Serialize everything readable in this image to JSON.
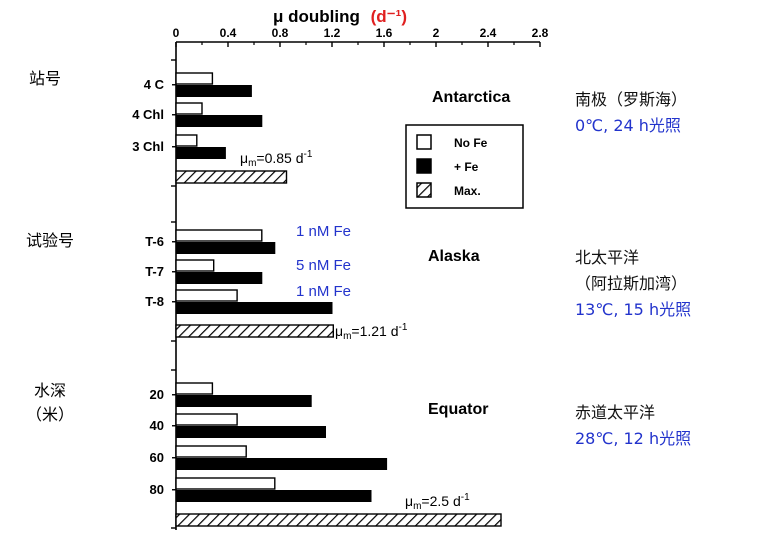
{
  "chart_data": {
    "type": "bar",
    "orientation": "horizontal",
    "title": "μ doubling",
    "title_unit": "(d⁻¹)",
    "title_unit_color": "#e02020",
    "x_ticks": [
      "0",
      "0.4",
      "0.8",
      "1.2",
      "1.6",
      "2",
      "2.4",
      "2.8"
    ],
    "xlim": [
      0,
      2.8
    ],
    "legend": {
      "placement": "inside-right",
      "entries": [
        {
          "key": "noFe",
          "label": "No Fe"
        },
        {
          "key": "plusFe",
          "label": "+ Fe"
        },
        {
          "key": "max",
          "label": "Max."
        }
      ]
    },
    "groups": [
      {
        "axis_label": [
          "站号"
        ],
        "region": "Antarctica",
        "mu_text": "=0.85 d",
        "mu_max": 0.85,
        "notes": [
          {
            "text": "南极（罗斯海）",
            "color": "#111111"
          },
          {
            "text": "0℃, 24 h光照",
            "color": "#2233cc"
          }
        ],
        "rows": [
          {
            "label": "4 C",
            "noFe": 0.28,
            "plusFe": 0.58
          },
          {
            "label": "4 Chl",
            "noFe": 0.2,
            "plusFe": 0.66
          },
          {
            "label": "3 Chl",
            "noFe": 0.16,
            "plusFe": 0.38
          }
        ]
      },
      {
        "axis_label": [
          "试验号"
        ],
        "region": "Alaska",
        "mu_text": "=1.21 d",
        "mu_max": 1.21,
        "notes": [
          {
            "text": "北太平洋",
            "color": "#111111"
          },
          {
            "text": "（阿拉斯加湾）",
            "color": "#111111"
          },
          {
            "text": "13℃, 15 h光照",
            "color": "#2233cc"
          }
        ],
        "rows": [
          {
            "label": "T-6",
            "noFe": 0.66,
            "plusFe": 0.76,
            "annotation": "1 nM Fe"
          },
          {
            "label": "T-7",
            "noFe": 0.29,
            "plusFe": 0.66,
            "annotation": "5 nM Fe"
          },
          {
            "label": "T-8",
            "noFe": 0.47,
            "plusFe": 1.2,
            "annotation": "1 nM Fe"
          }
        ]
      },
      {
        "axis_label": [
          "水深",
          "（米）"
        ],
        "region": "Equator",
        "mu_text": "=2.5 d",
        "mu_max": 2.5,
        "notes": [
          {
            "text": "赤道太平洋",
            "color": "#111111"
          },
          {
            "text": "28℃, 12 h光照",
            "color": "#2233cc"
          }
        ],
        "rows": [
          {
            "label": "20",
            "noFe": 0.28,
            "plusFe": 1.04
          },
          {
            "label": "40",
            "noFe": 0.47,
            "plusFe": 1.15
          },
          {
            "label": "60",
            "noFe": 0.54,
            "plusFe": 1.62
          },
          {
            "label": "80",
            "noFe": 0.76,
            "plusFe": 1.5
          }
        ]
      }
    ]
  }
}
